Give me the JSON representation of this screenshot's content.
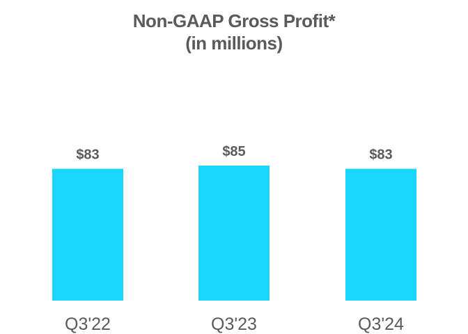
{
  "chart_data": {
    "type": "bar",
    "title": "Non-GAAP Gross Profit*",
    "subtitle": "(in millions)",
    "categories": [
      "Q3'22",
      "Q3'23",
      "Q3'24"
    ],
    "values": [
      83,
      85,
      83
    ],
    "value_labels": [
      "$83",
      "$85",
      "$83"
    ],
    "xlabel": "",
    "ylabel": "",
    "ylim": [
      0,
      85
    ],
    "grid": false,
    "legend": "none",
    "bar_color": "#1ad6fd",
    "text_color": "#5a5a5a"
  }
}
